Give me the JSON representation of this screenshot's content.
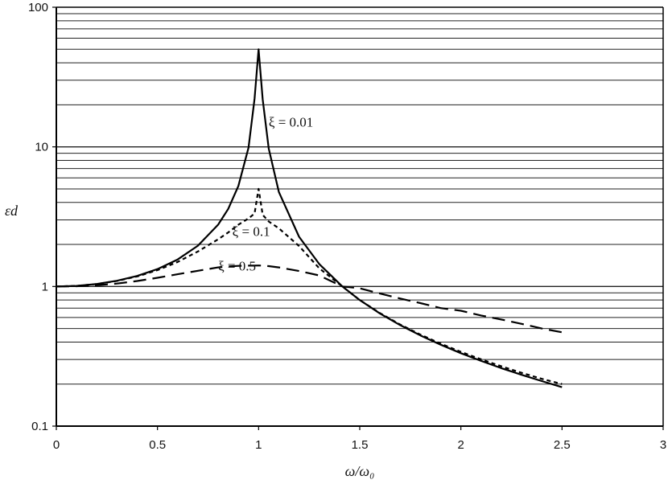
{
  "chart_data": {
    "type": "line",
    "title": "",
    "xlabel": "ω/ω₀",
    "ylabel": "εd",
    "xlim": [
      0,
      3
    ],
    "ylim": [
      0.1,
      100
    ],
    "y_scale": "log",
    "grid": {
      "horizontal_minor_log": true,
      "vertical": false
    },
    "x_ticks": [
      "0",
      "0.5",
      "1",
      "1.5",
      "2",
      "2.5",
      "3"
    ],
    "y_ticks": [
      "0.1",
      "1",
      "10",
      "100"
    ],
    "x": [
      0,
      0.1,
      0.2,
      0.3,
      0.4,
      0.5,
      0.6,
      0.7,
      0.8,
      0.85,
      0.9,
      0.95,
      0.98,
      1.0,
      1.02,
      1.05,
      1.1,
      1.2,
      1.3,
      1.414,
      1.5,
      1.6,
      1.7,
      1.8,
      1.9,
      2.0,
      2.1,
      2.2,
      2.3,
      2.4,
      2.5
    ],
    "series": [
      {
        "name": "ξ = 0.01",
        "line_style": "solid",
        "values": [
          1.0,
          1.01,
          1.042,
          1.099,
          1.19,
          1.333,
          1.562,
          1.96,
          2.774,
          3.597,
          5.25,
          9.86,
          22.1,
          50.0,
          21.9,
          9.73,
          4.75,
          2.271,
          1.449,
          1.0,
          0.8,
          0.641,
          0.529,
          0.446,
          0.383,
          0.333,
          0.293,
          0.26,
          0.233,
          0.21,
          0.19
        ]
      },
      {
        "name": "ξ = 0.1",
        "line_style": "dashed",
        "values": [
          1.0,
          1.01,
          1.041,
          1.096,
          1.181,
          1.31,
          1.5,
          1.78,
          2.18,
          2.44,
          2.77,
          3.07,
          3.33,
          5.0,
          3.26,
          2.92,
          2.61,
          1.95,
          1.35,
          1.0,
          0.8,
          0.645,
          0.534,
          0.452,
          0.39,
          0.34,
          0.301,
          0.268,
          0.241,
          0.218,
          0.2
        ]
      },
      {
        "name": "ξ = 0.5",
        "line_style": "long-dash",
        "values": [
          1.0,
          1.005,
          1.02,
          1.05,
          1.095,
          1.155,
          1.224,
          1.296,
          1.37,
          1.392,
          1.405,
          1.41,
          1.41,
          1.414,
          1.41,
          1.4,
          1.37,
          1.29,
          1.2,
          1.0,
          0.97,
          0.89,
          0.82,
          0.76,
          0.7,
          0.67,
          0.62,
          0.58,
          0.54,
          0.5,
          0.47
        ]
      }
    ],
    "annotations": [
      {
        "text": "ξ = 0.01",
        "x": 1.05,
        "y": 14
      },
      {
        "text": "ξ = 0.1",
        "x": 0.87,
        "y": 2.3
      },
      {
        "text": "ξ = 0.5",
        "x": 0.8,
        "y": 1.3
      }
    ]
  }
}
